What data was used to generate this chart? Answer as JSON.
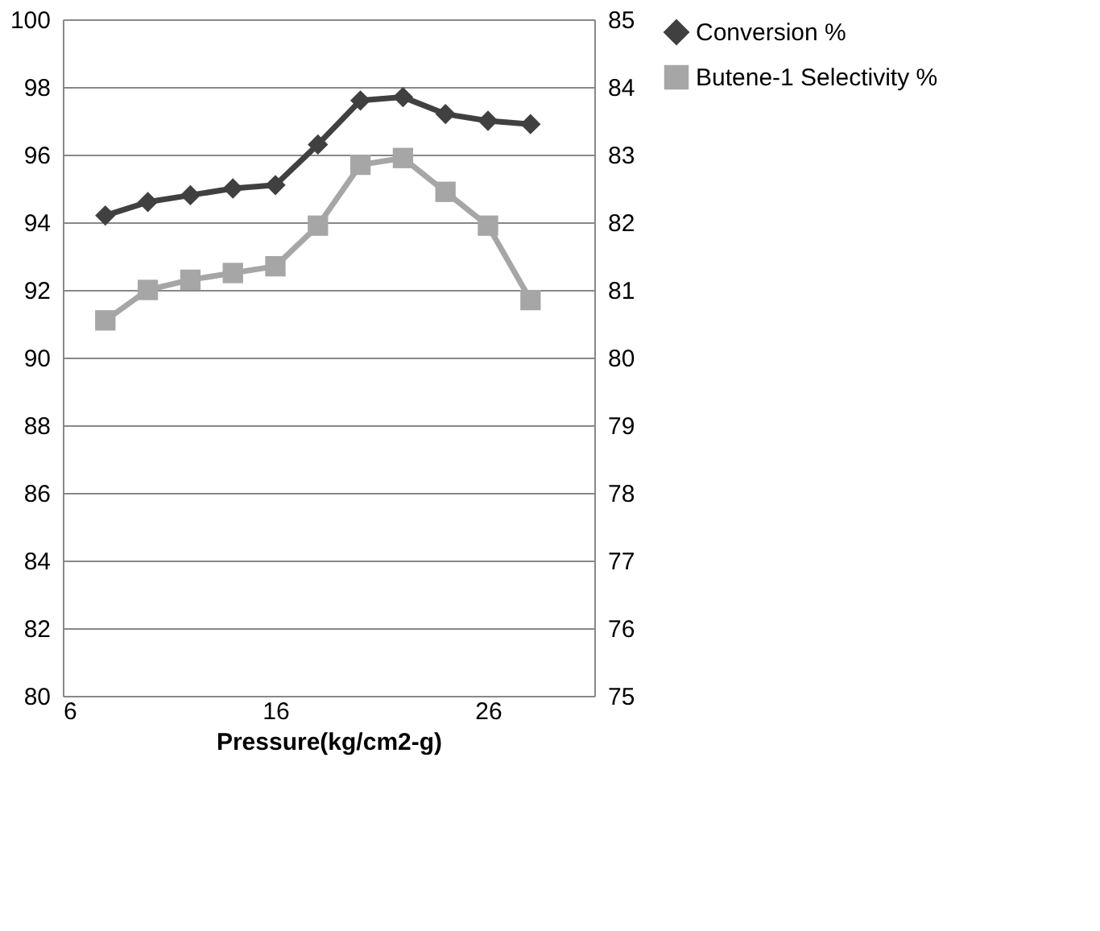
{
  "chart_data": {
    "type": "line",
    "xlabel": "Pressure(kg/cm2-g)",
    "x": [
      8,
      10,
      12,
      14,
      16,
      18,
      20,
      22,
      24,
      26,
      28
    ],
    "series": [
      {
        "name": "Conversion %",
        "color": "#404040",
        "marker": "diamond",
        "values": [
          94.2,
          94.6,
          94.8,
          95.0,
          95.1,
          96.3,
          97.6,
          97.7,
          97.2,
          97.0,
          96.9
        ]
      },
      {
        "name": "Butene-1 Selectivity %",
        "color": "#a6a6a6",
        "marker": "square",
        "axis": "y2",
        "values": [
          80.55,
          81.0,
          81.15,
          81.25,
          81.35,
          81.95,
          82.85,
          82.95,
          82.45,
          81.95,
          80.85
        ]
      }
    ],
    "xlim": [
      6,
      31
    ],
    "xticks": [
      6,
      16,
      26
    ],
    "ylim": [
      80,
      100
    ],
    "yticks": [
      80,
      82,
      84,
      86,
      88,
      90,
      92,
      94,
      96,
      98,
      100
    ],
    "y2lim": [
      75,
      85
    ],
    "y2ticks": [
      75,
      76,
      77,
      78,
      79,
      80,
      81,
      82,
      83,
      84,
      85
    ],
    "grid": "y",
    "legend": "right",
    "line_style": "solid"
  }
}
